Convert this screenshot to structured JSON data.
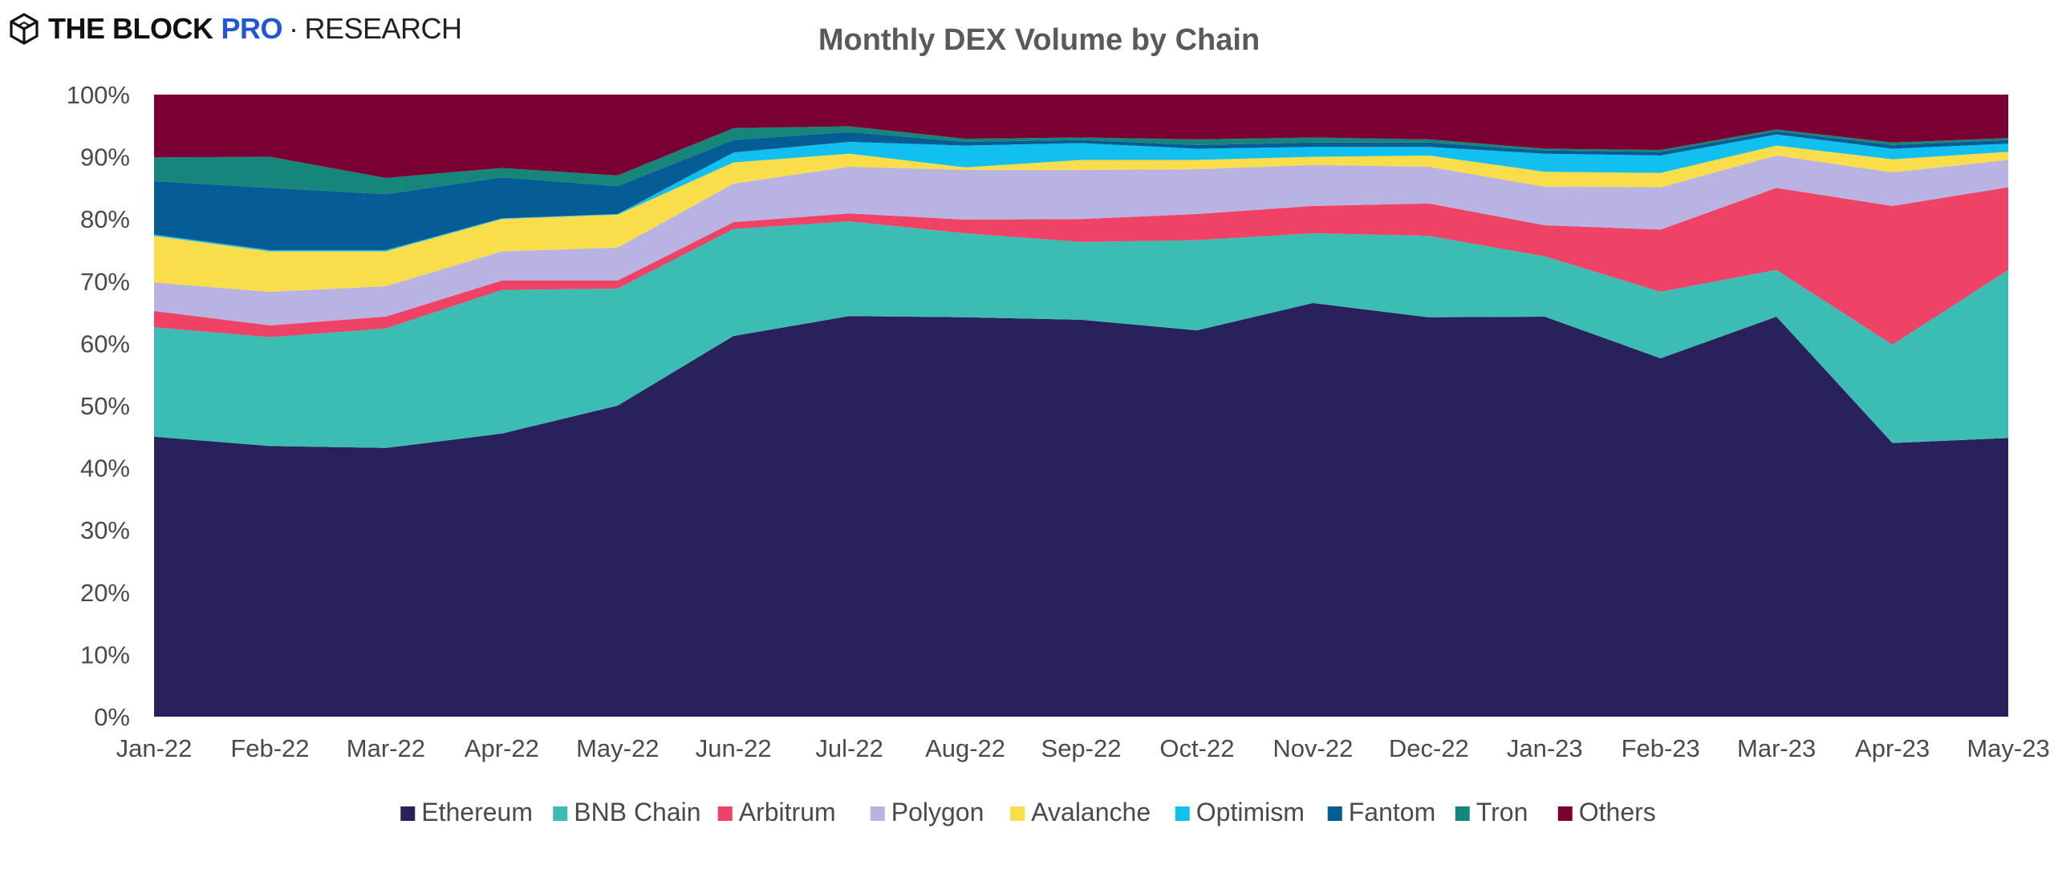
{
  "brand": {
    "main": "THE BLOCK",
    "pro": "PRO",
    "separator": "·",
    "research": "RESEARCH",
    "logo_icon": "block-cube-icon"
  },
  "chart_data": {
    "type": "area",
    "stacked": true,
    "normalized": true,
    "title": "Monthly DEX Volume by Chain",
    "xlabel": "",
    "ylabel": "",
    "x": [
      "Jan-22",
      "Feb-22",
      "Mar-22",
      "Apr-22",
      "May-22",
      "Jun-22",
      "Jul-22",
      "Aug-22",
      "Sep-22",
      "Oct-22",
      "Nov-22",
      "Dec-22",
      "Jan-23",
      "Feb-23",
      "Mar-23",
      "Apr-23",
      "May-23"
    ],
    "ylim": [
      0,
      100
    ],
    "yticks": [
      "0%",
      "10%",
      "20%",
      "30%",
      "40%",
      "50%",
      "60%",
      "70%",
      "80%",
      "90%",
      "100%"
    ],
    "grid": false,
    "legend_position": "bottom",
    "series": [
      {
        "name": "Ethereum",
        "color": "#29215c",
        "values": [
          45.0,
          43.5,
          43.2,
          45.5,
          50.0,
          61.2,
          64.4,
          64.2,
          63.8,
          62.1,
          66.5,
          64.2,
          64.3,
          57.6,
          64.3,
          44.0,
          44.8
        ]
      },
      {
        "name": "BNB Chain",
        "color": "#3bbdb3",
        "values": [
          17.6,
          17.5,
          19.2,
          23.1,
          18.8,
          17.2,
          15.2,
          13.5,
          12.5,
          14.5,
          11.2,
          13.1,
          9.7,
          10.7,
          7.5,
          15.8,
          27.0
        ]
      },
      {
        "name": "Arbitrum",
        "color": "#ee4266",
        "values": [
          2.6,
          1.9,
          1.9,
          1.5,
          1.3,
          1.1,
          1.3,
          2.2,
          3.7,
          4.2,
          4.4,
          5.2,
          5.0,
          10.0,
          13.2,
          22.3,
          13.3
        ]
      },
      {
        "name": "Polygon",
        "color": "#b9b3e2",
        "values": [
          4.6,
          5.4,
          4.9,
          4.7,
          5.3,
          6.2,
          7.5,
          8.0,
          7.9,
          7.2,
          6.6,
          5.9,
          6.2,
          6.8,
          5.2,
          5.4,
          4.4
        ]
      },
      {
        "name": "Avalanche",
        "color": "#f9dd4b",
        "values": [
          7.5,
          6.5,
          5.6,
          5.2,
          5.3,
          3.4,
          2.1,
          0.4,
          1.6,
          1.5,
          1.3,
          1.8,
          2.4,
          2.3,
          1.6,
          2.1,
          1.3
        ]
      },
      {
        "name": "Optimism",
        "color": "#12c0ef",
        "values": [
          0.2,
          0.2,
          0.2,
          0.1,
          0.1,
          1.6,
          1.9,
          3.5,
          2.7,
          1.8,
          1.6,
          1.4,
          2.9,
          2.8,
          1.8,
          1.7,
          1.3
        ]
      },
      {
        "name": "Fantom",
        "color": "#065c95",
        "values": [
          8.6,
          10.0,
          9.0,
          6.6,
          4.5,
          2.0,
          1.6,
          0.6,
          0.5,
          0.6,
          0.7,
          0.7,
          0.5,
          0.6,
          0.5,
          0.6,
          0.6
        ]
      },
      {
        "name": "Tron",
        "color": "#16857a",
        "values": [
          3.8,
          5.0,
          2.6,
          1.5,
          1.7,
          1.9,
          0.9,
          0.5,
          0.4,
          0.9,
          0.8,
          0.5,
          0.3,
          0.3,
          0.3,
          0.4,
          0.3
        ]
      },
      {
        "name": "Others",
        "color": "#7a0033",
        "values": [
          10.1,
          10.0,
          13.4,
          11.8,
          13.0,
          5.4,
          5.1,
          7.1,
          6.9,
          7.2,
          6.9,
          7.2,
          8.7,
          8.9,
          5.6,
          7.7,
          6.0
        ]
      }
    ]
  }
}
